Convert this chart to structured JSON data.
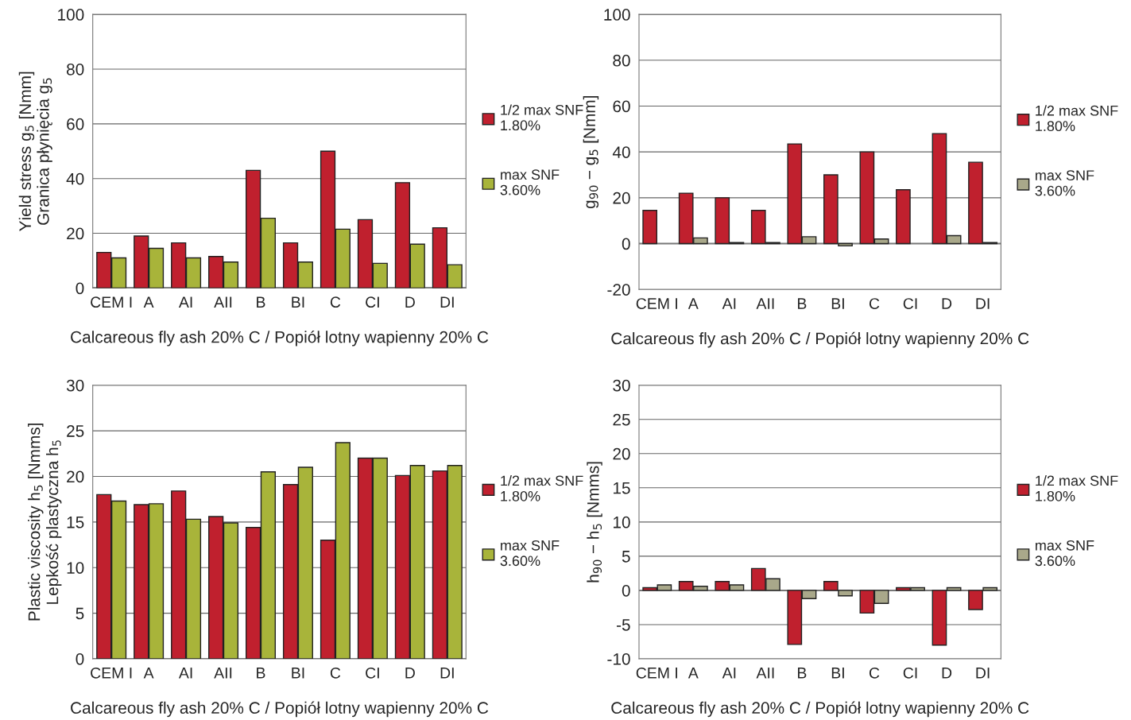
{
  "chart_data": [
    {
      "type": "bar",
      "ylabel": "Yield stress g$_{5}$ [Nmm]\nGranica płynięcia g$_{5}$",
      "xlabel": "Calcareous fly ash 20% C / Popiół lotny wapienny 20% C",
      "categories": [
        "CEM I",
        "A",
        "AI",
        "AII",
        "B",
        "BI",
        "C",
        "CI",
        "D",
        "DI"
      ],
      "ylim": [
        0,
        100
      ],
      "yticks": [
        0,
        20,
        40,
        60,
        80,
        100
      ],
      "grid": "y",
      "legend": "right",
      "series": [
        {
          "name": "1/2 max SNF\n1.80%",
          "color": "#c0202e",
          "values": [
            13,
            19,
            16.5,
            11.5,
            43,
            16.5,
            50,
            25,
            38.5,
            22
          ]
        },
        {
          "name": "max SNF\n3.60%",
          "color": "#a8b43a",
          "values": [
            11,
            14.5,
            11,
            9.5,
            25.5,
            9.5,
            21.5,
            9,
            16,
            8.5
          ]
        }
      ]
    },
    {
      "type": "bar",
      "ylabel": "g$_{90}$ − g$_{5}$ [Nmm]",
      "xlabel": "Calcareous fly ash 20% C / Popiół lotny wapienny 20% C",
      "categories": [
        "CEM I",
        "A",
        "AI",
        "AII",
        "B",
        "BI",
        "C",
        "CI",
        "D",
        "DI"
      ],
      "ylim": [
        -20,
        100
      ],
      "yticks": [
        -20,
        0,
        20,
        40,
        60,
        80,
        100
      ],
      "grid": "y",
      "legend": "right",
      "series": [
        {
          "name": "1/2 max SNF\n1.80%",
          "color": "#c0202e",
          "values": [
            14.5,
            22,
            20,
            14.5,
            43.5,
            30,
            40,
            23.5,
            48,
            35.5
          ]
        },
        {
          "name": "max SNF\n3.60%",
          "color": "#a9a88a",
          "values": [
            null,
            2.5,
            0.5,
            0.5,
            3,
            -1,
            2,
            null,
            3.5,
            0.5
          ]
        }
      ]
    },
    {
      "type": "bar",
      "ylabel": "Plastic viscosity h$_{5}$ [Nmms]\nLepkość plastyczna h$_{5}$",
      "xlabel": "Calcareous fly ash 20% C / Popiół lotny wapienny 20% C",
      "categories": [
        "CEM I",
        "A",
        "AI",
        "AII",
        "B",
        "BI",
        "C",
        "CI",
        "D",
        "DI"
      ],
      "ylim": [
        0,
        30
      ],
      "yticks": [
        0,
        5,
        10,
        15,
        20,
        25,
        30
      ],
      "grid": "y",
      "legend": "right",
      "series": [
        {
          "name": "1/2 max SNF\n1.80%",
          "color": "#c0202e",
          "values": [
            18,
            16.9,
            18.4,
            15.6,
            14.4,
            19.1,
            13,
            22,
            20.1,
            20.6
          ]
        },
        {
          "name": "max SNF\n3.60%",
          "color": "#a8b43a",
          "values": [
            17.3,
            17,
            15.3,
            14.9,
            20.5,
            21,
            23.7,
            22,
            21.2,
            21.2
          ]
        }
      ]
    },
    {
      "type": "bar",
      "ylabel": "h$_{90}$ − h$_{5}$ [Nmms]",
      "xlabel": "Calcareous fly ash 20% C / Popiół lotny wapienny 20% C",
      "categories": [
        "CEM I",
        "A",
        "AI",
        "AII",
        "B",
        "BI",
        "C",
        "CI",
        "D",
        "DI"
      ],
      "ylim": [
        -10,
        30
      ],
      "yticks": [
        -10,
        -5,
        0,
        5,
        10,
        15,
        20,
        25,
        30
      ],
      "grid": "y",
      "legend": "right",
      "series": [
        {
          "name": "1/2 max SNF\n1.80%",
          "color": "#c0202e",
          "values": [
            0.4,
            1.3,
            1.3,
            3.2,
            -7.9,
            1.3,
            -3.3,
            0.4,
            -8,
            -2.8
          ]
        },
        {
          "name": "max SNF\n3.60%",
          "color": "#a9a88a",
          "values": [
            0.8,
            0.6,
            0.8,
            1.7,
            -1.2,
            -0.8,
            -1.9,
            0.4,
            0.4,
            0.4
          ]
        }
      ]
    }
  ]
}
